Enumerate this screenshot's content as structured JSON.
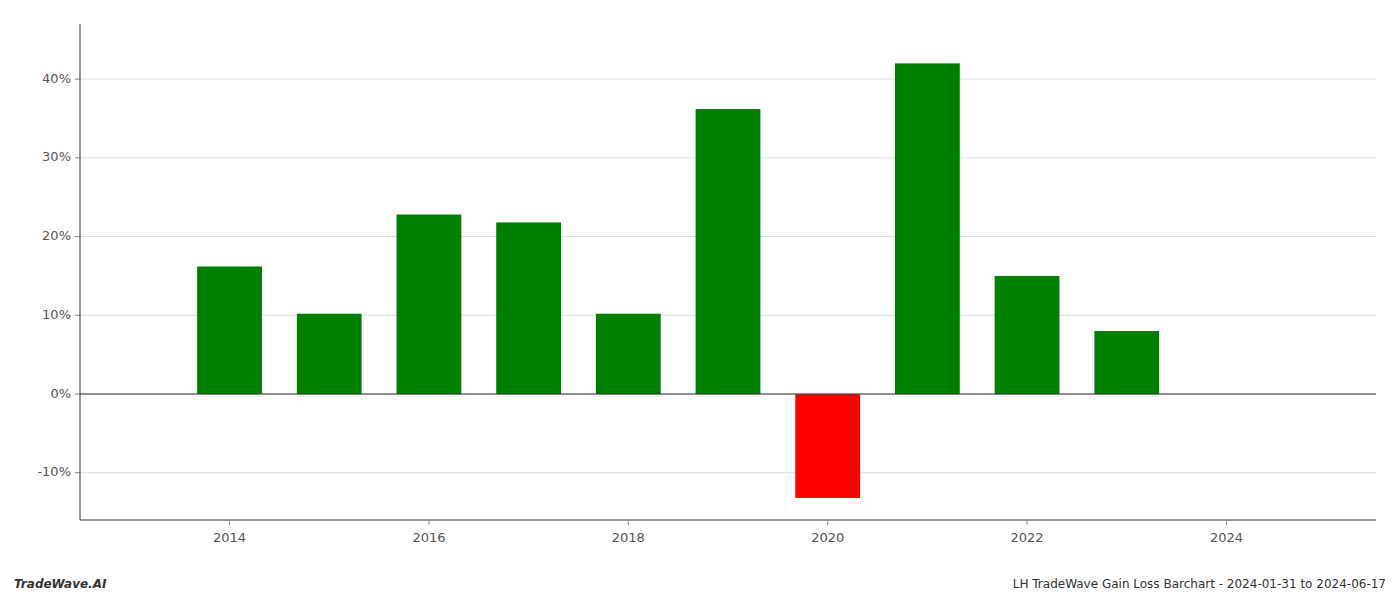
{
  "chart_data": {
    "type": "bar",
    "x": [
      2014,
      2015,
      2016,
      2017,
      2018,
      2019,
      2020,
      2021,
      2022,
      2023
    ],
    "values": [
      16.2,
      10.2,
      22.8,
      21.8,
      10.2,
      36.2,
      -13.2,
      42.0,
      15.0,
      8.0
    ],
    "colors": [
      "#008000",
      "#008000",
      "#008000",
      "#008000",
      "#008000",
      "#008000",
      "#ff0000",
      "#008000",
      "#008000",
      "#008000"
    ],
    "xlim": [
      2012.5,
      2025.5
    ],
    "ylim": [
      -16,
      47
    ],
    "xticks": [
      2014,
      2016,
      2018,
      2020,
      2022,
      2024
    ],
    "yticks": [
      {
        "value": -10,
        "label": "-10%"
      },
      {
        "value": 0,
        "label": "0%"
      },
      {
        "value": 10,
        "label": "10%"
      },
      {
        "value": 20,
        "label": "20%"
      },
      {
        "value": 30,
        "label": "30%"
      },
      {
        "value": 40,
        "label": "40%"
      }
    ],
    "grid": true,
    "annotations": [
      "TradeWave.AI",
      "LH TradeWave Gain Loss Barchart - 2024-01-31 to 2024-06-17"
    ]
  }
}
